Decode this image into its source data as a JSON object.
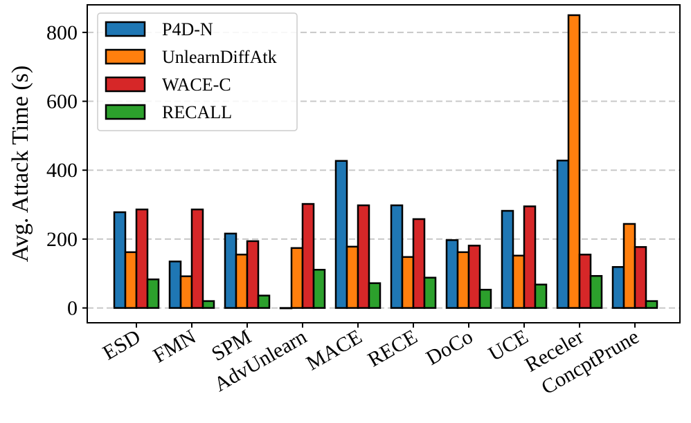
{
  "chart_data": {
    "type": "bar",
    "title": "",
    "xlabel": "",
    "ylabel": "Avg. Attack Time (s)",
    "ylim": [
      -43,
      880
    ],
    "yticks": [
      0,
      200,
      400,
      600,
      800
    ],
    "grid": "horizontal dashed",
    "legend_position": "top-left",
    "categories": [
      "ESD",
      "FMN",
      "SPM",
      "AdvUnlearn",
      "MACE",
      "RECE",
      "DoCo",
      "UCE",
      "Receler",
      "ConcptPrune"
    ],
    "series": [
      {
        "name": "P4D-N",
        "color": "#1f77b4",
        "values": [
          278,
          135,
          216,
          0,
          427,
          298,
          197,
          282,
          428,
          119
        ]
      },
      {
        "name": "UnlearnDiffAtk",
        "color": "#ff7f0e",
        "values": [
          162,
          92,
          155,
          174,
          178,
          148,
          162,
          152,
          850,
          244
        ]
      },
      {
        "name": "WACE-C",
        "color": "#d62728",
        "values": [
          286,
          286,
          194,
          302,
          298,
          258,
          181,
          295,
          155,
          177
        ]
      },
      {
        "name": "RECALL",
        "color": "#2ca02c",
        "values": [
          83,
          20,
          36,
          111,
          72,
          88,
          53,
          68,
          93,
          20
        ]
      }
    ]
  }
}
